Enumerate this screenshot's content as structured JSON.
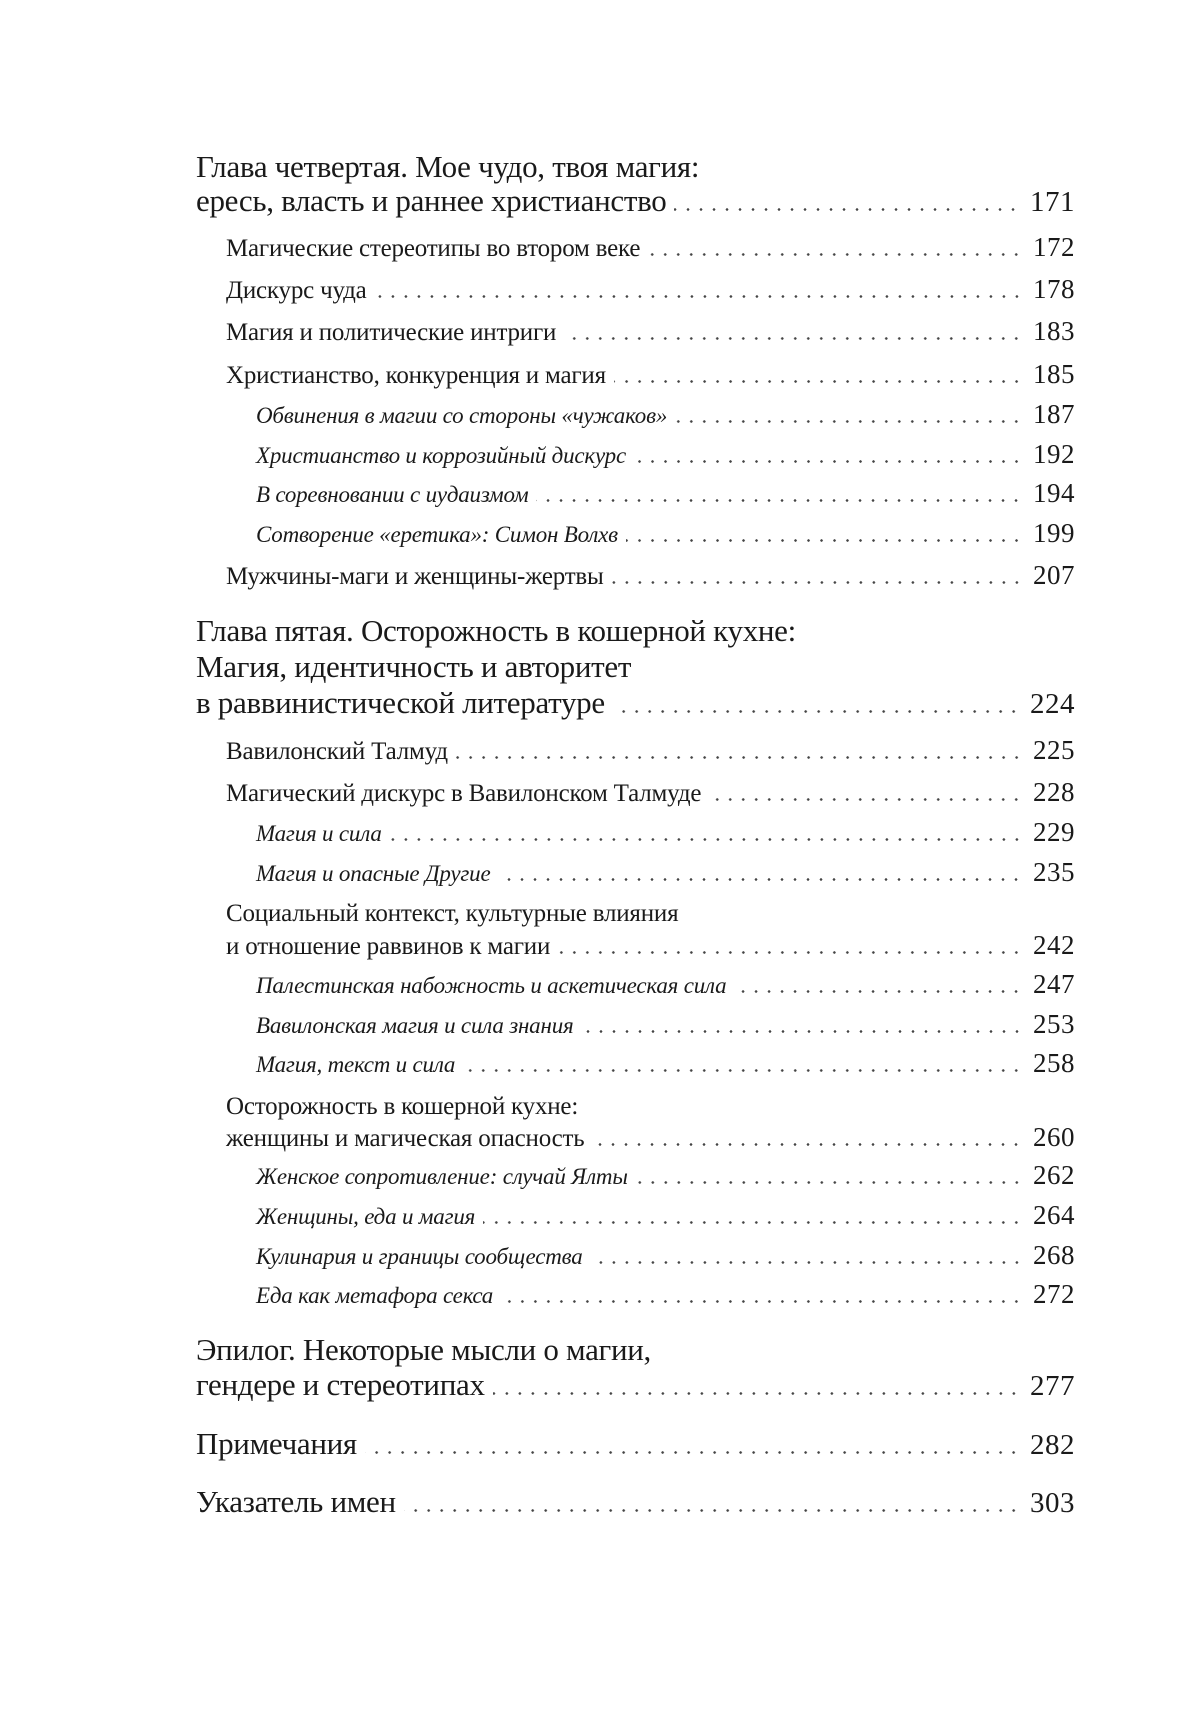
{
  "toc": {
    "ch4": {
      "line1": "Глава четвертая. Мое чудо, твоя магия:",
      "line2": "ересь, власть и раннее христианство",
      "page": "171"
    },
    "ch4_items": [
      {
        "title": "Магические стереотипы во втором веке",
        "page": "172"
      },
      {
        "title": "Дискурс чуда",
        "page": "178"
      },
      {
        "title": "Магия и политические интриги",
        "page": "183"
      },
      {
        "title": "Христианство, конкуренция и магия",
        "page": "185"
      },
      {
        "title": "Обвинения в магии со стороны «чужаков»",
        "page": "187"
      },
      {
        "title": "Христианство и коррозийный дискурс",
        "page": "192"
      },
      {
        "title": "В соревновании с иудаизмом",
        "page": "194"
      },
      {
        "title": "Сотворение «еретика»: Симон Волхв",
        "page": "199"
      },
      {
        "title": "Мужчины-маги и женщины-жертвы",
        "page": "207"
      }
    ],
    "ch5": {
      "line1": "Глава пятая. Осторожность в кошерной кухне:",
      "line2": "Магия, идентичность и авторитет",
      "line3": "в раввинистической литературе",
      "page": "224"
    },
    "ch5_items": [
      {
        "title": "Вавилонский Талмуд",
        "page": "225"
      },
      {
        "title": "Магический дискурс в Вавилонском Талмуде",
        "page": "228"
      },
      {
        "title": "Магия и сила",
        "page": "229"
      },
      {
        "title": "Магия и опасные Другие",
        "page": "235"
      },
      {
        "line1": "Социальный контекст, культурные влияния",
        "title": "и отношение раввинов к магии",
        "page": "242"
      },
      {
        "title": "Палестинская набожность и аскетическая сила",
        "page": "247"
      },
      {
        "title": "Вавилонская магия и сила знания",
        "page": "253"
      },
      {
        "title": "Магия, текст и сила",
        "page": "258"
      },
      {
        "line1": "Осторожность в кошерной кухне:",
        "title": "женщины и магическая опасность",
        "page": "260"
      },
      {
        "title": "Женское сопротивление: случай Ялты",
        "page": "262"
      },
      {
        "title": "Женщины, еда и магия",
        "page": "264"
      },
      {
        "title": "Кулинария и границы сообщества",
        "page": "268"
      },
      {
        "title": "Еда как метафора секса",
        "page": "272"
      }
    ],
    "epilogue": {
      "line1": "Эпилог. Некоторые мысли о магии,",
      "line2": "гендере и стереотипах",
      "page": "277"
    },
    "notes": {
      "title": "Примечания",
      "page": "282"
    },
    "index": {
      "title": "Указатель имен",
      "page": "303"
    }
  }
}
